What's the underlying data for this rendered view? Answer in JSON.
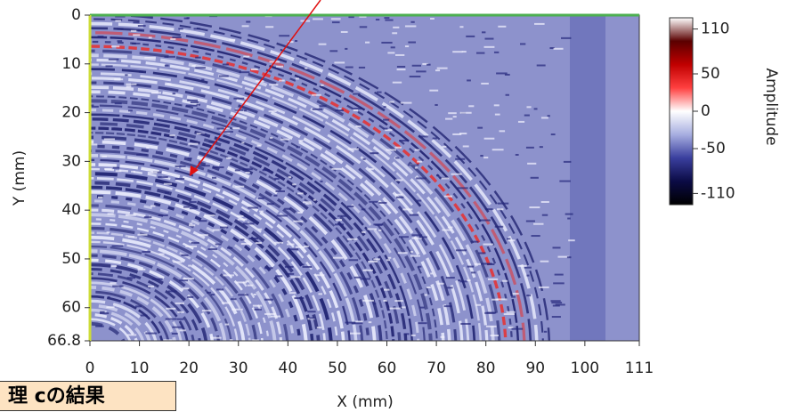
{
  "chart_data": {
    "type": "image",
    "xlabel": "X (mm)",
    "ylabel": "Y (mm)",
    "xlim": [
      0,
      111
    ],
    "xticks": [
      0,
      10,
      20,
      30,
      40,
      50,
      60,
      70,
      80,
      90,
      100,
      111
    ],
    "ylim": [
      0,
      66.8
    ],
    "yticks": [
      0,
      10,
      20,
      30,
      40,
      50,
      60,
      66.8
    ],
    "colorbar_label": "Amplitude",
    "clim": [
      -125,
      125
    ],
    "cticks": [
      110,
      50,
      0,
      -50,
      -110
    ],
    "colormap": [
      "#000000",
      "#0b0b45",
      "#3a3f9e",
      "#a7aee0",
      "#ffffff",
      "#ff4040",
      "#c00000",
      "#5a0000",
      "#ffffff"
    ],
    "annotation": "理 cの結果"
  }
}
